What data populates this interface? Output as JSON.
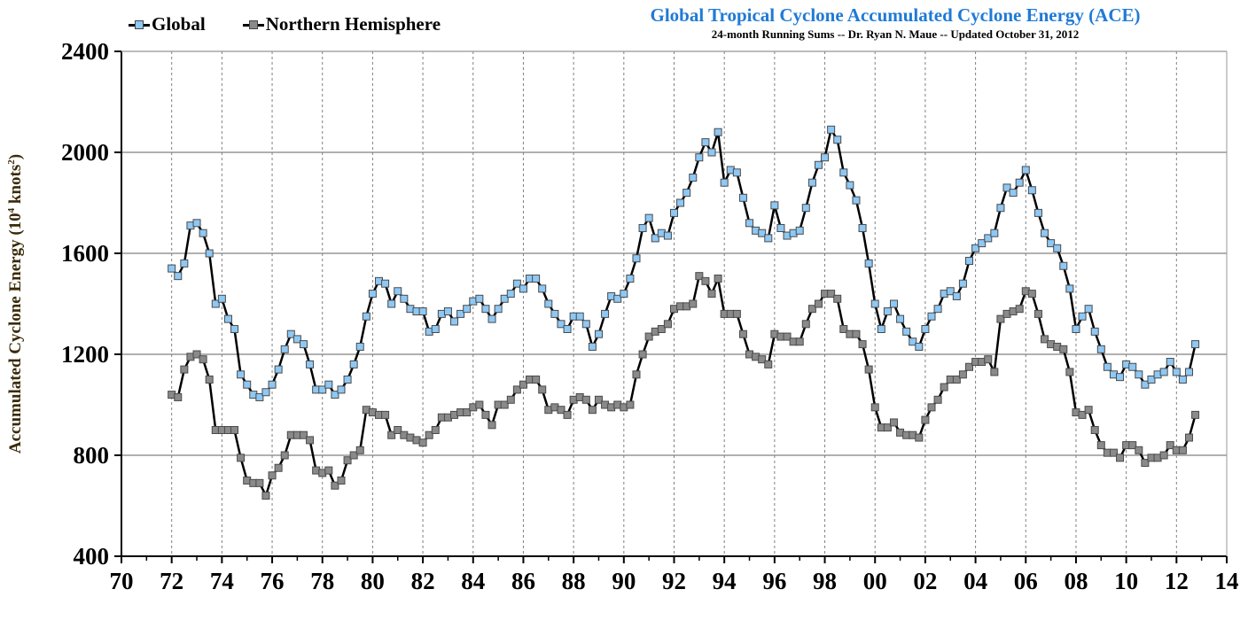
{
  "chart_data": {
    "type": "line",
    "title": "Global Tropical Cyclone Accumulated Cyclone Energy (ACE)",
    "subtitle": "24-month Running Sums -- Dr. Ryan N. Maue -- Updated October 31, 2012",
    "ylabel": "Accumulated Cyclone Energy (10",
    "ylabel_sup": "4",
    "ylabel_tail": " knots",
    "ylabel_sup2": "2",
    "ylabel_end": ")",
    "xlim": [
      1970,
      2014
    ],
    "ylim": [
      400,
      2400
    ],
    "yticks": [
      400,
      800,
      1200,
      1600,
      2000,
      2400
    ],
    "ytick_labels": [
      "400",
      "800",
      "1200",
      "1600",
      "2000",
      "2400"
    ],
    "xticks": [
      1970,
      1972,
      1974,
      1976,
      1978,
      1980,
      1982,
      1984,
      1986,
      1988,
      1990,
      1992,
      1994,
      1996,
      1998,
      2000,
      2002,
      2004,
      2006,
      2008,
      2010,
      2012,
      2014
    ],
    "xtick_labels": [
      "70",
      "72",
      "74",
      "76",
      "78",
      "80",
      "82",
      "84",
      "86",
      "88",
      "90",
      "92",
      "94",
      "96",
      "98",
      "00",
      "02",
      "04",
      "06",
      "08",
      "10",
      "12",
      "14"
    ],
    "grid": {
      "horizontal": "solid",
      "vertical": "dashed"
    },
    "legend_placement": "top-left",
    "colors": {
      "title": "#1f7ad6",
      "global_marker": "#8ec8f5",
      "nh_marker": "#8a8a8a",
      "line": "#000000",
      "drop_top": "#a9d6fb",
      "drop_bottom": "#3d5a78"
    },
    "x": [
      1972,
      1972.25,
      1972.5,
      1972.75,
      1973,
      1973.25,
      1973.5,
      1973.75,
      1974,
      1974.25,
      1974.5,
      1974.75,
      1975,
      1975.25,
      1975.5,
      1975.75,
      1976,
      1976.25,
      1976.5,
      1976.75,
      1977,
      1977.25,
      1977.5,
      1977.75,
      1978,
      1978.25,
      1978.5,
      1978.75,
      1979,
      1979.25,
      1979.5,
      1979.75,
      1980,
      1980.25,
      1980.5,
      1980.75,
      1981,
      1981.25,
      1981.5,
      1981.75,
      1982,
      1982.25,
      1982.5,
      1982.75,
      1983,
      1983.25,
      1983.5,
      1983.75,
      1984,
      1984.25,
      1984.5,
      1984.75,
      1985,
      1985.25,
      1985.5,
      1985.75,
      1986,
      1986.25,
      1986.5,
      1986.75,
      1987,
      1987.25,
      1987.5,
      1987.75,
      1988,
      1988.25,
      1988.5,
      1988.75,
      1989,
      1989.25,
      1989.5,
      1989.75,
      1990,
      1990.25,
      1990.5,
      1990.75,
      1991,
      1991.25,
      1991.5,
      1991.75,
      1992,
      1992.25,
      1992.5,
      1992.75,
      1993,
      1993.25,
      1993.5,
      1993.75,
      1994,
      1994.25,
      1994.5,
      1994.75,
      1995,
      1995.25,
      1995.5,
      1995.75,
      1996,
      1996.25,
      1996.5,
      1996.75,
      1997,
      1997.25,
      1997.5,
      1997.75,
      1998,
      1998.25,
      1998.5,
      1998.75,
      1999,
      1999.25,
      1999.5,
      1999.75,
      2000,
      2000.25,
      2000.5,
      2000.75,
      2001,
      2001.25,
      2001.5,
      2001.75,
      2002,
      2002.25,
      2002.5,
      2002.75,
      2003,
      2003.25,
      2003.5,
      2003.75,
      2004,
      2004.25,
      2004.5,
      2004.75,
      2005,
      2005.25,
      2005.5,
      2005.75,
      2006,
      2006.25,
      2006.5,
      2006.75,
      2007,
      2007.25,
      2007.5,
      2007.75,
      2008,
      2008.25,
      2008.5,
      2008.75,
      2009,
      2009.25,
      2009.5,
      2009.75,
      2010,
      2010.25,
      2010.5,
      2010.75,
      2011,
      2011.25,
      2011.5,
      2011.75,
      2012,
      2012.25,
      2012.5,
      2012.75
    ],
    "series": [
      {
        "name": "Global",
        "values": [
          1540,
          1510,
          1560,
          1710,
          1720,
          1680,
          1600,
          1400,
          1420,
          1340,
          1300,
          1120,
          1080,
          1040,
          1030,
          1050,
          1080,
          1140,
          1220,
          1280,
          1260,
          1240,
          1160,
          1060,
          1060,
          1080,
          1040,
          1060,
          1100,
          1160,
          1230,
          1350,
          1440,
          1490,
          1480,
          1400,
          1450,
          1420,
          1380,
          1370,
          1370,
          1290,
          1300,
          1360,
          1370,
          1330,
          1360,
          1380,
          1410,
          1420,
          1380,
          1340,
          1380,
          1420,
          1440,
          1480,
          1460,
          1500,
          1500,
          1460,
          1400,
          1360,
          1320,
          1300,
          1350,
          1350,
          1320,
          1230,
          1280,
          1360,
          1430,
          1420,
          1440,
          1500,
          1580,
          1700,
          1740,
          1660,
          1680,
          1670,
          1760,
          1800,
          1840,
          1900,
          1980,
          2040,
          2000,
          2080,
          1880,
          1930,
          1920,
          1820,
          1720,
          1690,
          1680,
          1660,
          1790,
          1700,
          1670,
          1680,
          1690,
          1780,
          1880,
          1950,
          1980,
          2090,
          2050,
          1920,
          1870,
          1810,
          1700,
          1560,
          1400,
          1300,
          1370,
          1400,
          1340,
          1290,
          1250,
          1230,
          1300,
          1350,
          1380,
          1440,
          1450,
          1430,
          1480,
          1570,
          1620,
          1640,
          1660,
          1680,
          1780,
          1860,
          1840,
          1880,
          1930,
          1850,
          1760,
          1680,
          1640,
          1620,
          1550,
          1460,
          1300,
          1350,
          1380,
          1290,
          1220,
          1150,
          1120,
          1110,
          1160,
          1150,
          1120,
          1080,
          1100,
          1120,
          1130,
          1170,
          1130,
          1100,
          1130,
          1240
        ]
      },
      {
        "name": "Northern Hemisphere",
        "values": [
          1040,
          1030,
          1140,
          1190,
          1200,
          1180,
          1100,
          900,
          900,
          900,
          900,
          790,
          700,
          690,
          690,
          640,
          720,
          750,
          800,
          880,
          880,
          880,
          860,
          740,
          730,
          740,
          680,
          700,
          780,
          800,
          820,
          980,
          970,
          960,
          960,
          880,
          900,
          880,
          870,
          860,
          850,
          880,
          900,
          950,
          950,
          960,
          970,
          970,
          990,
          1000,
          960,
          920,
          1000,
          1000,
          1020,
          1060,
          1080,
          1100,
          1100,
          1060,
          980,
          990,
          980,
          960,
          1020,
          1030,
          1020,
          980,
          1020,
          1000,
          990,
          1000,
          990,
          1000,
          1120,
          1200,
          1270,
          1290,
          1300,
          1320,
          1380,
          1390,
          1390,
          1400,
          1510,
          1490,
          1440,
          1500,
          1360,
          1360,
          1360,
          1280,
          1200,
          1190,
          1180,
          1160,
          1280,
          1270,
          1270,
          1250,
          1250,
          1320,
          1380,
          1400,
          1440,
          1440,
          1420,
          1300,
          1280,
          1280,
          1240,
          1140,
          990,
          910,
          910,
          930,
          890,
          880,
          880,
          870,
          940,
          990,
          1020,
          1070,
          1100,
          1100,
          1120,
          1150,
          1170,
          1170,
          1180,
          1130,
          1340,
          1360,
          1370,
          1380,
          1450,
          1440,
          1360,
          1260,
          1240,
          1230,
          1220,
          1130,
          970,
          960,
          980,
          900,
          840,
          810,
          810,
          790,
          840,
          840,
          820,
          770,
          790,
          790,
          800,
          840,
          820,
          820,
          870,
          960
        ]
      }
    ]
  }
}
